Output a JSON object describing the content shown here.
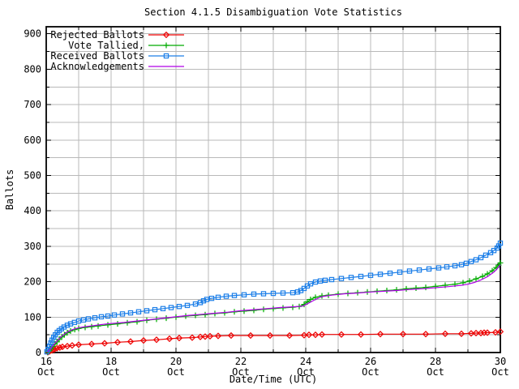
{
  "chart_data": {
    "type": "line",
    "title": "Section 4.1.5 Disambiguation Vote Statistics",
    "xlabel": "Date/Time (UTC)",
    "ylabel": "Ballots",
    "x_max_days": 14,
    "y_max": 920,
    "y_tick_step": 100,
    "y_grid_step": 50,
    "x_grid_step_days": 1,
    "y_ticks": [
      0,
      100,
      200,
      300,
      400,
      500,
      600,
      700,
      800,
      900
    ],
    "x_ticks": [
      {
        "day": 0,
        "top": "16",
        "bottom": "Oct"
      },
      {
        "day": 2,
        "top": "18",
        "bottom": "Oct"
      },
      {
        "day": 4,
        "top": "20",
        "bottom": "Oct"
      },
      {
        "day": 6,
        "top": "22",
        "bottom": "Oct"
      },
      {
        "day": 8,
        "top": "24",
        "bottom": "Oct"
      },
      {
        "day": 10,
        "top": "26",
        "bottom": "Oct"
      },
      {
        "day": 12,
        "top": "28",
        "bottom": "Oct"
      },
      {
        "day": 14,
        "top": "30",
        "bottom": "Oct"
      }
    ],
    "grid": true,
    "grid_color": "#b9b9b9",
    "border_color": "#000000",
    "background_color": "#ffffff",
    "legend_position": "top-left-inside",
    "series": [
      {
        "name": "Rejected Ballots",
        "color": "#ee0000",
        "marker": "diamond",
        "points": [
          [
            0.05,
            1
          ],
          [
            0.1,
            3
          ],
          [
            0.18,
            6
          ],
          [
            0.25,
            9
          ],
          [
            0.33,
            12
          ],
          [
            0.42,
            14
          ],
          [
            0.5,
            16
          ],
          [
            0.65,
            18
          ],
          [
            0.8,
            20
          ],
          [
            1.0,
            22
          ],
          [
            1.4,
            24
          ],
          [
            1.8,
            26
          ],
          [
            2.2,
            29
          ],
          [
            2.6,
            31
          ],
          [
            3.0,
            34
          ],
          [
            3.4,
            36
          ],
          [
            3.8,
            39
          ],
          [
            4.1,
            41
          ],
          [
            4.5,
            42
          ],
          [
            4.75,
            44
          ],
          [
            4.9,
            45
          ],
          [
            5.05,
            46
          ],
          [
            5.3,
            47
          ],
          [
            5.7,
            48
          ],
          [
            6.3,
            48
          ],
          [
            6.9,
            48
          ],
          [
            7.5,
            48
          ],
          [
            7.95,
            49
          ],
          [
            8.1,
            50
          ],
          [
            8.3,
            50
          ],
          [
            8.5,
            51
          ],
          [
            9.1,
            51
          ],
          [
            9.7,
            51
          ],
          [
            10.3,
            52
          ],
          [
            11.0,
            52
          ],
          [
            11.7,
            52
          ],
          [
            12.3,
            53
          ],
          [
            12.8,
            53
          ],
          [
            13.1,
            54
          ],
          [
            13.25,
            55
          ],
          [
            13.4,
            55
          ],
          [
            13.5,
            56
          ],
          [
            13.6,
            56
          ],
          [
            13.85,
            57
          ],
          [
            14.0,
            59
          ]
        ]
      },
      {
        "name": "Vote Tallied,",
        "color": "#00aa00",
        "marker": "plus",
        "points": [
          [
            0.04,
            1
          ],
          [
            0.1,
            6
          ],
          [
            0.15,
            11
          ],
          [
            0.2,
            17
          ],
          [
            0.27,
            24
          ],
          [
            0.33,
            30
          ],
          [
            0.4,
            37
          ],
          [
            0.48,
            44
          ],
          [
            0.56,
            50
          ],
          [
            0.65,
            56
          ],
          [
            0.75,
            61
          ],
          [
            0.88,
            65
          ],
          [
            1.0,
            68
          ],
          [
            1.2,
            71
          ],
          [
            1.4,
            73
          ],
          [
            1.6,
            75
          ],
          [
            1.9,
            78
          ],
          [
            2.2,
            81
          ],
          [
            2.5,
            84
          ],
          [
            2.8,
            87
          ],
          [
            3.1,
            91
          ],
          [
            3.4,
            94
          ],
          [
            3.7,
            97
          ],
          [
            4.0,
            100
          ],
          [
            4.3,
            103
          ],
          [
            4.6,
            105
          ],
          [
            4.9,
            107
          ],
          [
            5.2,
            110
          ],
          [
            5.5,
            112
          ],
          [
            5.8,
            115
          ],
          [
            6.1,
            117
          ],
          [
            6.4,
            119
          ],
          [
            6.7,
            122
          ],
          [
            7.0,
            124
          ],
          [
            7.3,
            126
          ],
          [
            7.6,
            128
          ],
          [
            7.8,
            130
          ],
          [
            7.95,
            136
          ],
          [
            8.05,
            143
          ],
          [
            8.15,
            150
          ],
          [
            8.3,
            156
          ],
          [
            8.5,
            160
          ],
          [
            8.7,
            162
          ],
          [
            9.0,
            165
          ],
          [
            9.3,
            167
          ],
          [
            9.6,
            169
          ],
          [
            9.9,
            171
          ],
          [
            10.2,
            173
          ],
          [
            10.5,
            175
          ],
          [
            10.8,
            177
          ],
          [
            11.1,
            180
          ],
          [
            11.4,
            182
          ],
          [
            11.7,
            184
          ],
          [
            12.0,
            187
          ],
          [
            12.3,
            190
          ],
          [
            12.6,
            193
          ],
          [
            12.85,
            197
          ],
          [
            13.05,
            202
          ],
          [
            13.25,
            208
          ],
          [
            13.45,
            215
          ],
          [
            13.6,
            222
          ],
          [
            13.75,
            231
          ],
          [
            13.87,
            240
          ],
          [
            13.95,
            247
          ],
          [
            14.0,
            253
          ]
        ]
      },
      {
        "name": "Received Ballots",
        "color": "#1d7fe8",
        "marker": "square",
        "points": [
          [
            0.02,
            2
          ],
          [
            0.06,
            9
          ],
          [
            0.1,
            18
          ],
          [
            0.14,
            27
          ],
          [
            0.18,
            35
          ],
          [
            0.23,
            43
          ],
          [
            0.28,
            50
          ],
          [
            0.34,
            57
          ],
          [
            0.4,
            62
          ],
          [
            0.47,
            67
          ],
          [
            0.55,
            72
          ],
          [
            0.65,
            77
          ],
          [
            0.75,
            81
          ],
          [
            0.87,
            85
          ],
          [
            1.0,
            89
          ],
          [
            1.15,
            92
          ],
          [
            1.3,
            95
          ],
          [
            1.5,
            98
          ],
          [
            1.7,
            101
          ],
          [
            1.9,
            103
          ],
          [
            2.1,
            106
          ],
          [
            2.35,
            109
          ],
          [
            2.6,
            112
          ],
          [
            2.85,
            115
          ],
          [
            3.1,
            118
          ],
          [
            3.35,
            121
          ],
          [
            3.6,
            124
          ],
          [
            3.85,
            127
          ],
          [
            4.1,
            130
          ],
          [
            4.35,
            133
          ],
          [
            4.6,
            137
          ],
          [
            4.75,
            141
          ],
          [
            4.85,
            146
          ],
          [
            4.95,
            150
          ],
          [
            5.1,
            153
          ],
          [
            5.3,
            156
          ],
          [
            5.55,
            159
          ],
          [
            5.8,
            161
          ],
          [
            6.1,
            163
          ],
          [
            6.4,
            165
          ],
          [
            6.7,
            166
          ],
          [
            7.0,
            167
          ],
          [
            7.3,
            168
          ],
          [
            7.6,
            169
          ],
          [
            7.75,
            171
          ],
          [
            7.85,
            175
          ],
          [
            7.95,
            181
          ],
          [
            8.05,
            188
          ],
          [
            8.15,
            194
          ],
          [
            8.3,
            199
          ],
          [
            8.45,
            202
          ],
          [
            8.6,
            204
          ],
          [
            8.8,
            206
          ],
          [
            9.1,
            209
          ],
          [
            9.4,
            212
          ],
          [
            9.7,
            215
          ],
          [
            10.0,
            218
          ],
          [
            10.3,
            221
          ],
          [
            10.6,
            224
          ],
          [
            10.9,
            227
          ],
          [
            11.2,
            230
          ],
          [
            11.5,
            233
          ],
          [
            11.8,
            236
          ],
          [
            12.1,
            239
          ],
          [
            12.35,
            242
          ],
          [
            12.6,
            245
          ],
          [
            12.8,
            248
          ],
          [
            12.95,
            252
          ],
          [
            13.1,
            257
          ],
          [
            13.25,
            262
          ],
          [
            13.4,
            268
          ],
          [
            13.55,
            275
          ],
          [
            13.7,
            282
          ],
          [
            13.8,
            288
          ],
          [
            13.9,
            295
          ],
          [
            13.95,
            301
          ],
          [
            14.0,
            309
          ]
        ]
      },
      {
        "name": "Acknowledgements",
        "color": "#b100e8",
        "marker": "none",
        "points": [
          [
            0.03,
            1
          ],
          [
            0.1,
            7
          ],
          [
            0.17,
            15
          ],
          [
            0.24,
            23
          ],
          [
            0.32,
            31
          ],
          [
            0.42,
            41
          ],
          [
            0.52,
            49
          ],
          [
            0.62,
            56
          ],
          [
            0.72,
            61
          ],
          [
            0.85,
            66
          ],
          [
            1.0,
            70
          ],
          [
            1.2,
            73
          ],
          [
            1.45,
            76
          ],
          [
            1.7,
            79
          ],
          [
            2.0,
            82
          ],
          [
            2.4,
            85
          ],
          [
            2.8,
            89
          ],
          [
            3.2,
            93
          ],
          [
            3.6,
            97
          ],
          [
            4.0,
            101
          ],
          [
            4.4,
            105
          ],
          [
            4.8,
            108
          ],
          [
            5.2,
            111
          ],
          [
            5.6,
            114
          ],
          [
            6.0,
            118
          ],
          [
            6.4,
            121
          ],
          [
            6.8,
            124
          ],
          [
            7.2,
            127
          ],
          [
            7.6,
            129
          ],
          [
            7.9,
            131
          ],
          [
            8.1,
            140
          ],
          [
            8.3,
            150
          ],
          [
            8.5,
            158
          ],
          [
            8.8,
            162
          ],
          [
            9.2,
            166
          ],
          [
            9.6,
            168
          ],
          [
            10.0,
            171
          ],
          [
            10.4,
            173
          ],
          [
            10.8,
            175
          ],
          [
            11.2,
            178
          ],
          [
            11.6,
            180
          ],
          [
            12.0,
            183
          ],
          [
            12.4,
            186
          ],
          [
            12.8,
            190
          ],
          [
            13.0,
            193
          ],
          [
            13.2,
            198
          ],
          [
            13.4,
            205
          ],
          [
            13.6,
            214
          ],
          [
            13.8,
            227
          ],
          [
            13.9,
            236
          ],
          [
            14.0,
            248
          ]
        ]
      }
    ]
  }
}
